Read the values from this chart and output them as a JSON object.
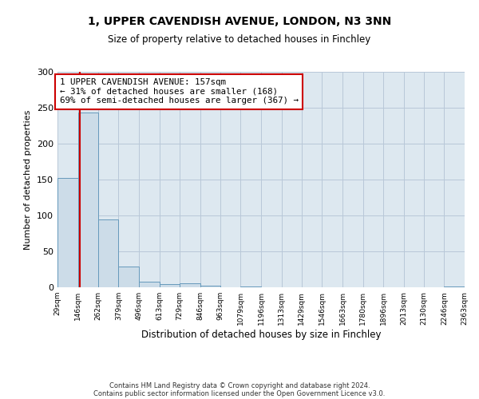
{
  "title": "1, UPPER CAVENDISH AVENUE, LONDON, N3 3NN",
  "subtitle": "Size of property relative to detached houses in Finchley",
  "xlabel": "Distribution of detached houses by size in Finchley",
  "ylabel": "Number of detached properties",
  "bin_edges": [
    29,
    146,
    262,
    379,
    496,
    613,
    729,
    846,
    963,
    1079,
    1196,
    1313,
    1429,
    1546,
    1663,
    1780,
    1896,
    2013,
    2130,
    2246,
    2363
  ],
  "bin_labels": [
    "29sqm",
    "146sqm",
    "262sqm",
    "379sqm",
    "496sqm",
    "613sqm",
    "729sqm",
    "846sqm",
    "963sqm",
    "1079sqm",
    "1196sqm",
    "1313sqm",
    "1429sqm",
    "1546sqm",
    "1663sqm",
    "1780sqm",
    "1896sqm",
    "2013sqm",
    "2130sqm",
    "2246sqm",
    "2363sqm"
  ],
  "bar_heights": [
    152,
    243,
    95,
    29,
    8,
    5,
    6,
    2,
    0,
    1,
    0,
    0,
    0,
    0,
    0,
    0,
    0,
    0,
    0,
    1
  ],
  "bar_color": "#ccdce8",
  "bar_edge_color": "#6699bb",
  "property_value": 157,
  "vline_color": "#cc0000",
  "annotation_line1": "1 UPPER CAVENDISH AVENUE: 157sqm",
  "annotation_line2": "← 31% of detached houses are smaller (168)",
  "annotation_line3": "69% of semi-detached houses are larger (367) →",
  "annotation_box_color": "#ffffff",
  "annotation_box_edge_color": "#cc0000",
  "ylim": [
    0,
    300
  ],
  "yticks": [
    0,
    50,
    100,
    150,
    200,
    250,
    300
  ],
  "plot_bg_color": "#dde8f0",
  "fig_bg_color": "#ffffff",
  "grid_color": "#b8c8d8",
  "footer_line1": "Contains HM Land Registry data © Crown copyright and database right 2024.",
  "footer_line2": "Contains public sector information licensed under the Open Government Licence v3.0."
}
